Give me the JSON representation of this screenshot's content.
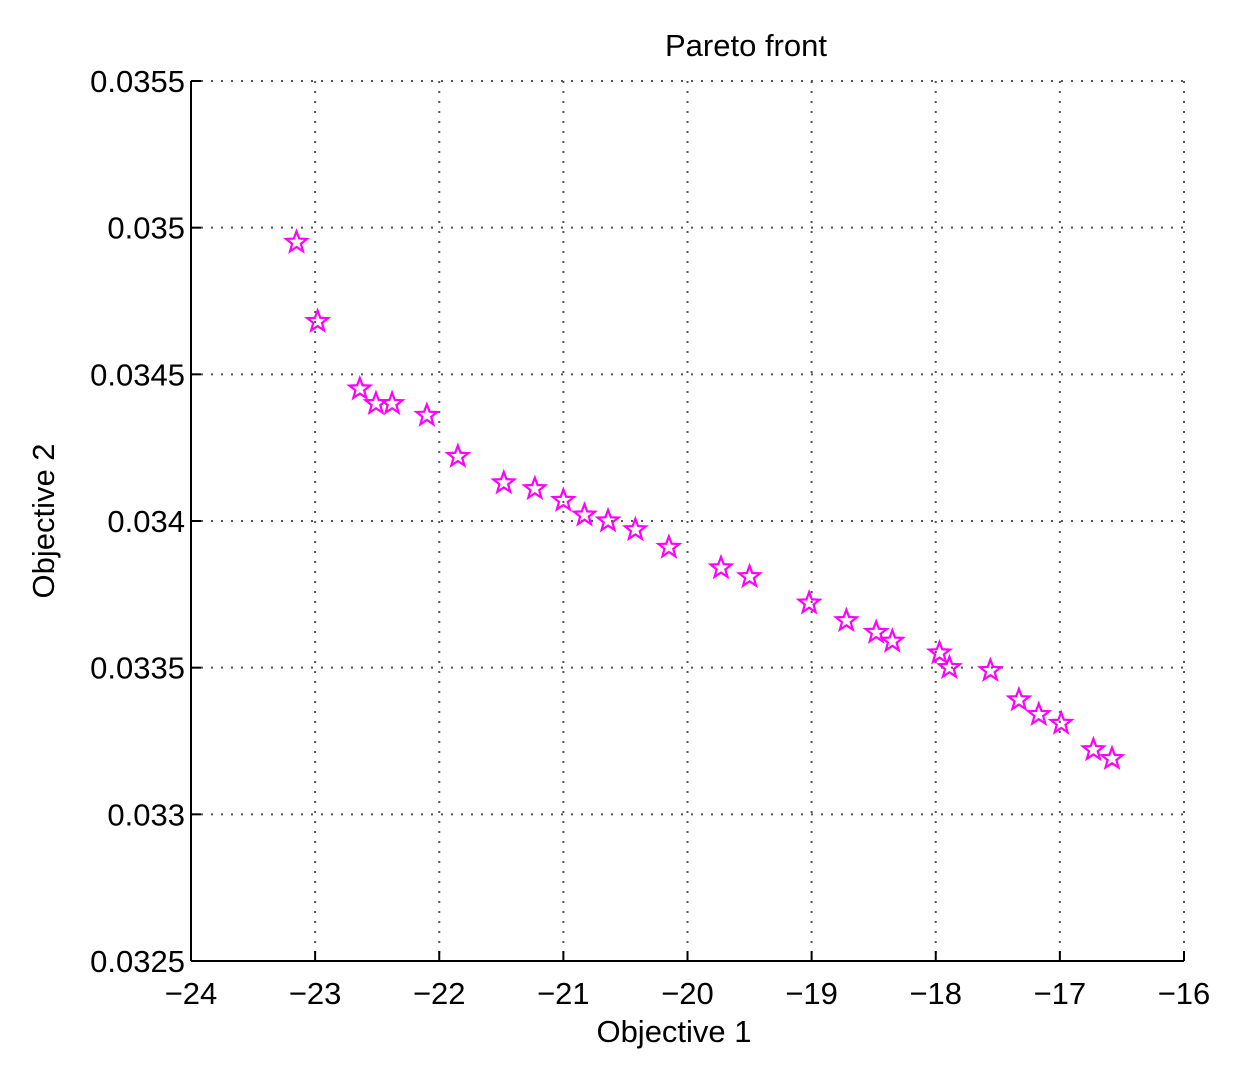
{
  "chart_data": {
    "type": "scatter",
    "title": "Pareto front",
    "xlabel": "Objective 1",
    "ylabel": "Objective 2",
    "xlim": [
      -24,
      -16
    ],
    "ylim": [
      0.0325,
      0.0355
    ],
    "x_ticks": [
      -24,
      -23,
      -22,
      -21,
      -20,
      -19,
      -18,
      -17,
      -16
    ],
    "x_tick_labels": [
      "−24",
      "−23",
      "−22",
      "−21",
      "−20",
      "−19",
      "−18",
      "−17",
      "−16"
    ],
    "y_ticks": [
      0.0325,
      0.033,
      0.0335,
      0.034,
      0.0345,
      0.035,
      0.0355
    ],
    "y_tick_labels": [
      "0.0325",
      "0.033",
      "0.0335",
      "0.034",
      "0.0345",
      "0.035",
      "0.0355"
    ],
    "grid": true,
    "marker": "star",
    "marker_color": "#ff00ff",
    "series": [
      {
        "points": [
          [
            -23.15,
            0.03495
          ],
          [
            -22.98,
            0.03468
          ],
          [
            -22.64,
            0.03445
          ],
          [
            -22.51,
            0.0344
          ],
          [
            -22.38,
            0.0344
          ],
          [
            -22.1,
            0.03436
          ],
          [
            -21.85,
            0.03422
          ],
          [
            -21.48,
            0.03413
          ],
          [
            -21.23,
            0.03411
          ],
          [
            -21.0,
            0.03407
          ],
          [
            -20.83,
            0.03402
          ],
          [
            -20.64,
            0.034
          ],
          [
            -20.42,
            0.03397
          ],
          [
            -20.15,
            0.03391
          ],
          [
            -19.73,
            0.03384
          ],
          [
            -19.5,
            0.03381
          ],
          [
            -19.02,
            0.03372
          ],
          [
            -18.72,
            0.03366
          ],
          [
            -18.48,
            0.03362
          ],
          [
            -18.35,
            0.03359
          ],
          [
            -17.97,
            0.03355
          ],
          [
            -17.89,
            0.0335
          ],
          [
            -17.56,
            0.03349
          ],
          [
            -17.33,
            0.03339
          ],
          [
            -17.17,
            0.03334
          ],
          [
            -16.99,
            0.03331
          ],
          [
            -16.73,
            0.03322
          ],
          [
            -16.58,
            0.03319
          ]
        ]
      }
    ]
  }
}
